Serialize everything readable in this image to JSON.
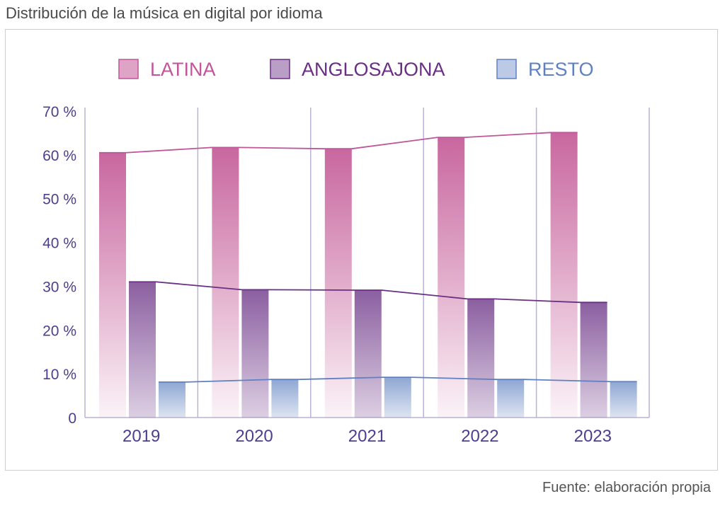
{
  "title": "Distribución de la música en digital por idioma",
  "source": "Fuente: elaboración propia",
  "colors": {
    "latina": "#c8679f",
    "latina_line": "#c0559a",
    "anglosajona": "#8b5fa0",
    "anglosajona_line": "#6a2f84",
    "resto": "#8fa7d3",
    "resto_line": "#5f80c2",
    "axis": "#b8b3d8",
    "tick_text": "#4b3f8f"
  },
  "chart_data": {
    "type": "bar",
    "title": "Distribución de la música en digital por idioma",
    "xlabel": "",
    "ylabel": "",
    "categories": [
      "2019",
      "2020",
      "2021",
      "2022",
      "2023"
    ],
    "series": [
      {
        "name": "LATINA",
        "values": [
          60.5,
          61.7,
          61.4,
          64.0,
          65.1
        ]
      },
      {
        "name": "ANGLOSAJONA",
        "values": [
          31.0,
          29.2,
          29.1,
          27.1,
          26.3
        ]
      },
      {
        "name": "RESTO",
        "values": [
          8.1,
          8.7,
          9.2,
          8.7,
          8.2
        ]
      }
    ],
    "ylim": [
      0,
      70
    ],
    "yticks": [
      0,
      10,
      20,
      30,
      40,
      50,
      60,
      70
    ],
    "ytick_labels": [
      "0",
      "10 %",
      "20 %",
      "30 %",
      "40 %",
      "50 %",
      "60 %",
      "70 %"
    ],
    "grid": "vertical separators between categories",
    "legend_position": "top-center",
    "overlay_lines": "each series also drawn as a line connecting bar tops"
  }
}
